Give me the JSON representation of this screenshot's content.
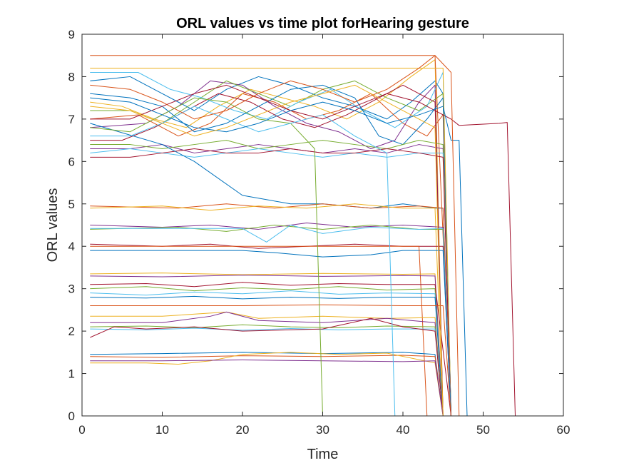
{
  "chart_data": {
    "type": "line",
    "title": "ORL values vs time plot forHearing gesture",
    "xlabel": "Time",
    "ylabel": "ORL values",
    "xlim": [
      0,
      60
    ],
    "ylim": [
      0,
      9
    ],
    "xticks": [
      0,
      10,
      20,
      30,
      40,
      50,
      60
    ],
    "yticks": [
      0,
      1,
      2,
      3,
      4,
      5,
      6,
      7,
      8,
      9
    ],
    "xtick_labels": [
      "0",
      "10",
      "20",
      "30",
      "40",
      "50",
      "60"
    ],
    "ytick_labels": [
      "0",
      "1",
      "2",
      "3",
      "4",
      "5",
      "6",
      "7",
      "8",
      "9"
    ],
    "grid": false,
    "legend": "none",
    "colors": [
      "#0072BD",
      "#D95319",
      "#EDB120",
      "#7E2F8E",
      "#77AC30",
      "#4DBEEE",
      "#A2142F"
    ],
    "series": [
      {
        "x": [
          1,
          6,
          10,
          14,
          18,
          22,
          26,
          30,
          34,
          38,
          41,
          44,
          45,
          46,
          55
        ],
        "values": [
          7.9,
          8.0,
          7.6,
          7.2,
          7.7,
          8.0,
          7.8,
          7.5,
          7.3,
          7.0,
          7.4,
          7.9,
          7.6,
          0,
          0
        ]
      },
      {
        "x": [
          1,
          7,
          12,
          16,
          20,
          24,
          28,
          32,
          36,
          40,
          43,
          45,
          46,
          55
        ],
        "values": [
          7.0,
          7.1,
          6.6,
          6.9,
          7.6,
          7.4,
          7.0,
          7.2,
          7.6,
          6.9,
          6.6,
          7.1,
          0,
          0
        ]
      },
      {
        "x": [
          1,
          5,
          9,
          13,
          17,
          21,
          25,
          29,
          33,
          37,
          41,
          44,
          45,
          55
        ],
        "values": [
          7.4,
          7.3,
          7.0,
          6.8,
          7.3,
          7.7,
          7.5,
          7.3,
          7.0,
          7.4,
          8.0,
          8.4,
          0,
          0
        ]
      },
      {
        "x": [
          1,
          8,
          12,
          16,
          20,
          24,
          28,
          32,
          36,
          39,
          42,
          44,
          45,
          55
        ],
        "values": [
          6.8,
          6.9,
          7.3,
          7.9,
          7.8,
          7.3,
          6.9,
          6.7,
          6.3,
          6.5,
          7.4,
          7.8,
          0,
          0
        ]
      },
      {
        "x": [
          1,
          6,
          10,
          14,
          18,
          22,
          26,
          30,
          34,
          38,
          42,
          45,
          46,
          55
        ],
        "values": [
          7.2,
          7.2,
          6.9,
          7.4,
          7.9,
          7.6,
          7.3,
          7.7,
          7.9,
          7.5,
          7.2,
          7.6,
          0,
          0
        ]
      },
      {
        "x": [
          1,
          7,
          11,
          15,
          19,
          23,
          27,
          31,
          35,
          39,
          43,
          45,
          46,
          55
        ],
        "values": [
          8.1,
          8.1,
          7.7,
          7.5,
          7.2,
          7.0,
          7.4,
          7.7,
          7.2,
          6.8,
          7.3,
          8.1,
          0,
          0
        ]
      },
      {
        "x": [
          1,
          5,
          9,
          13,
          17,
          21,
          25,
          29,
          33,
          37,
          40,
          44,
          45,
          55
        ],
        "values": [
          6.5,
          6.5,
          6.8,
          7.2,
          7.6,
          7.4,
          7.0,
          6.8,
          7.1,
          7.5,
          7.8,
          7.4,
          0,
          0
        ]
      },
      {
        "x": [
          1,
          6,
          10,
          14,
          18,
          22,
          26,
          30,
          34,
          37,
          40,
          43,
          45,
          46,
          55
        ],
        "values": [
          7.6,
          7.5,
          7.3,
          6.7,
          6.9,
          7.3,
          7.7,
          7.8,
          7.5,
          6.6,
          6.4,
          7.0,
          7.5,
          0,
          0
        ]
      },
      {
        "x": [
          1,
          44,
          46,
          55
        ],
        "values": [
          8.5,
          8.5,
          0,
          0
        ]
      },
      {
        "x": [
          1,
          45,
          46,
          55
        ],
        "values": [
          8.2,
          8.2,
          0,
          0
        ]
      },
      {
        "x": [
          1,
          6,
          10,
          14,
          18,
          22,
          26,
          30,
          34,
          38,
          42,
          45,
          46,
          55
        ],
        "values": [
          6.3,
          6.3,
          6.4,
          6.2,
          6.3,
          6.4,
          6.3,
          6.2,
          6.3,
          6.2,
          6.4,
          6.3,
          0,
          0
        ]
      },
      {
        "x": [
          1,
          6,
          10,
          14,
          18,
          22,
          26,
          30,
          34,
          38,
          42,
          45,
          46,
          55
        ],
        "values": [
          6.4,
          6.4,
          6.3,
          6.4,
          6.5,
          6.3,
          6.4,
          6.5,
          6.4,
          6.3,
          6.5,
          6.4,
          0,
          0
        ]
      },
      {
        "x": [
          1,
          6,
          10,
          14,
          18,
          22,
          26,
          30,
          34,
          38,
          42,
          45,
          46,
          55
        ],
        "values": [
          6.2,
          6.3,
          6.2,
          6.1,
          6.2,
          6.3,
          6.2,
          6.1,
          6.2,
          6.1,
          6.2,
          6.2,
          0,
          0
        ]
      },
      {
        "x": [
          1,
          6,
          10,
          14,
          18,
          22,
          26,
          30,
          34,
          38,
          42,
          45,
          46,
          55
        ],
        "values": [
          6.1,
          6.1,
          6.2,
          6.3,
          6.2,
          6.2,
          6.3,
          6.2,
          6.2,
          6.3,
          6.2,
          6.1,
          0,
          0
        ]
      },
      {
        "x": [
          1,
          10,
          14,
          20,
          26,
          30,
          36,
          40,
          44,
          45,
          46,
          55
        ],
        "values": [
          6.9,
          6.4,
          6.0,
          5.2,
          5.0,
          5.0,
          4.9,
          5.0,
          4.9,
          4.9,
          0,
          0
        ]
      },
      {
        "x": [
          1,
          12,
          18,
          24,
          30,
          36,
          42,
          45,
          46,
          55
        ],
        "values": [
          4.95,
          4.9,
          5.0,
          4.9,
          5.0,
          4.9,
          4.95,
          4.9,
          0,
          0
        ]
      },
      {
        "x": [
          1,
          10,
          16,
          22,
          28,
          34,
          40,
          44,
          45,
          55
        ],
        "values": [
          4.9,
          4.95,
          4.85,
          4.95,
          4.9,
          5.0,
          4.9,
          4.9,
          0,
          0
        ]
      },
      {
        "x": [
          1,
          10,
          16,
          22,
          28,
          34,
          40,
          45,
          46,
          55
        ],
        "values": [
          4.5,
          4.45,
          4.5,
          4.4,
          4.55,
          4.45,
          4.5,
          4.45,
          0,
          0
        ]
      },
      {
        "x": [
          1,
          12,
          18,
          24,
          30,
          36,
          42,
          45,
          46,
          55
        ],
        "values": [
          4.4,
          4.45,
          4.35,
          4.5,
          4.4,
          4.5,
          4.4,
          4.4,
          0,
          0
        ]
      },
      {
        "x": [
          1,
          20,
          23,
          26,
          30,
          36,
          42,
          45,
          46,
          55
        ],
        "values": [
          4.42,
          4.42,
          4.1,
          4.5,
          4.3,
          4.45,
          4.4,
          4.42,
          0,
          0
        ]
      },
      {
        "x": [
          1,
          10,
          16,
          22,
          28,
          34,
          40,
          45,
          46,
          55
        ],
        "values": [
          4.05,
          4.0,
          4.05,
          3.95,
          4.0,
          4.05,
          4.0,
          4.0,
          0,
          0
        ]
      },
      {
        "x": [
          1,
          20,
          24,
          30,
          36,
          40,
          45,
          46,
          55
        ],
        "values": [
          3.9,
          3.9,
          3.85,
          3.75,
          3.8,
          3.9,
          3.9,
          0,
          0
        ]
      },
      {
        "x": [
          1,
          42,
          43,
          55
        ],
        "values": [
          4.0,
          4.0,
          0,
          0
        ]
      },
      {
        "x": [
          1,
          10,
          20,
          30,
          40,
          44,
          45,
          55
        ],
        "values": [
          3.35,
          3.37,
          3.33,
          3.36,
          3.34,
          3.35,
          0,
          0
        ]
      },
      {
        "x": [
          1,
          10,
          20,
          30,
          40,
          44,
          45,
          55
        ],
        "values": [
          3.3,
          3.28,
          3.32,
          3.29,
          3.31,
          3.3,
          0,
          0
        ]
      },
      {
        "x": [
          1,
          8,
          14,
          20,
          26,
          32,
          38,
          44,
          45,
          55
        ],
        "values": [
          3.0,
          3.05,
          2.95,
          3.02,
          2.98,
          3.05,
          2.97,
          3.0,
          0,
          0
        ]
      },
      {
        "x": [
          1,
          8,
          14,
          20,
          26,
          32,
          38,
          44,
          45,
          55
        ],
        "values": [
          2.9,
          2.85,
          2.92,
          2.88,
          2.95,
          2.87,
          2.9,
          2.88,
          0,
          0
        ]
      },
      {
        "x": [
          1,
          8,
          14,
          20,
          26,
          32,
          38,
          44,
          46,
          55
        ],
        "values": [
          3.1,
          3.12,
          3.05,
          3.15,
          3.08,
          3.12,
          3.1,
          3.1,
          0,
          0
        ]
      },
      {
        "x": [
          1,
          8,
          14,
          20,
          26,
          32,
          38,
          44,
          45,
          55
        ],
        "values": [
          2.8,
          2.78,
          2.82,
          2.76,
          2.8,
          2.77,
          2.8,
          2.8,
          0,
          0
        ]
      },
      {
        "x": [
          1,
          20,
          30,
          40,
          45,
          46,
          55
        ],
        "values": [
          2.6,
          2.6,
          2.62,
          2.6,
          2.6,
          0,
          0
        ]
      },
      {
        "x": [
          1,
          10,
          18,
          22,
          30,
          38,
          44,
          45,
          55
        ],
        "values": [
          2.35,
          2.35,
          2.45,
          2.3,
          2.35,
          2.3,
          2.32,
          0,
          0
        ]
      },
      {
        "x": [
          1,
          10,
          16,
          18,
          22,
          30,
          38,
          44,
          45,
          55
        ],
        "values": [
          2.2,
          2.2,
          2.35,
          2.45,
          2.25,
          2.2,
          2.3,
          2.2,
          0,
          0
        ]
      },
      {
        "x": [
          1,
          8,
          14,
          20,
          26,
          32,
          38,
          44,
          45,
          55
        ],
        "values": [
          2.1,
          2.12,
          2.08,
          2.15,
          2.1,
          2.08,
          2.12,
          2.1,
          0,
          0
        ]
      },
      {
        "x": [
          1,
          8,
          14,
          20,
          26,
          32,
          38,
          44,
          45,
          55
        ],
        "values": [
          2.05,
          2.03,
          2.07,
          2.02,
          2.06,
          2.03,
          2.05,
          2.05,
          0,
          0
        ]
      },
      {
        "x": [
          1,
          4,
          8,
          14,
          20,
          30,
          36,
          40,
          44,
          45,
          55
        ],
        "values": [
          1.85,
          2.1,
          2.05,
          2.1,
          2.0,
          2.05,
          2.3,
          2.1,
          2.0,
          0,
          0
        ]
      },
      {
        "x": [
          1,
          10,
          20,
          30,
          40,
          44,
          45,
          55
        ],
        "values": [
          1.45,
          1.47,
          1.5,
          1.47,
          1.5,
          1.45,
          0,
          0
        ]
      },
      {
        "x": [
          1,
          10,
          20,
          30,
          40,
          44,
          45,
          55
        ],
        "values": [
          1.4,
          1.38,
          1.42,
          1.4,
          1.43,
          1.4,
          0,
          0
        ]
      },
      {
        "x": [
          1,
          8,
          12,
          16,
          20,
          26,
          32,
          38,
          44,
          45,
          55
        ],
        "values": [
          1.25,
          1.25,
          1.22,
          1.3,
          1.45,
          1.5,
          1.45,
          1.48,
          1.25,
          0,
          0
        ]
      },
      {
        "x": [
          1,
          10,
          20,
          30,
          40,
          44,
          45,
          55
        ],
        "values": [
          1.3,
          1.3,
          1.32,
          1.3,
          1.28,
          1.3,
          0,
          0
        ]
      },
      {
        "x": [
          1,
          6,
          10,
          14,
          18,
          22,
          26,
          29,
          30,
          55
        ],
        "values": [
          6.8,
          6.7,
          7.1,
          7.5,
          7.4,
          7.0,
          6.9,
          6.3,
          0,
          0
        ]
      },
      {
        "x": [
          1,
          6,
          10,
          14,
          18,
          22,
          26,
          30,
          34,
          38,
          39,
          55
        ],
        "values": [
          6.6,
          6.6,
          6.9,
          7.3,
          7.0,
          6.7,
          6.9,
          7.1,
          6.6,
          6.2,
          0,
          0
        ]
      },
      {
        "x": [
          1,
          6,
          10,
          14,
          18,
          22,
          26,
          30,
          34,
          38,
          42,
          45,
          46,
          47,
          52,
          53,
          54,
          55
        ],
        "values": [
          7.0,
          7.0,
          7.3,
          7.6,
          7.8,
          7.5,
          7.2,
          7.0,
          7.3,
          7.6,
          7.4,
          7.1,
          7.0,
          6.85,
          6.9,
          6.92,
          0,
          0
        ]
      },
      {
        "x": [
          1,
          6,
          10,
          14,
          18,
          22,
          26,
          30,
          34,
          38,
          42,
          45,
          46,
          47,
          48,
          55
        ],
        "values": [
          7.5,
          7.4,
          7.1,
          6.8,
          6.7,
          6.9,
          7.2,
          7.4,
          7.2,
          6.9,
          7.1,
          7.3,
          6.5,
          6.5,
          0,
          0
        ]
      },
      {
        "x": [
          1,
          6,
          10,
          14,
          18,
          22,
          26,
          30,
          34,
          38,
          42,
          44,
          46,
          47,
          55
        ],
        "values": [
          7.8,
          7.7,
          7.4,
          7.0,
          7.2,
          7.6,
          7.9,
          7.7,
          7.4,
          7.7,
          8.2,
          8.5,
          8.1,
          0,
          0
        ]
      },
      {
        "x": [
          1,
          6,
          10,
          14,
          18,
          22,
          26,
          30,
          34,
          38,
          42,
          44,
          45,
          55
        ],
        "values": [
          7.3,
          7.2,
          6.9,
          6.6,
          6.8,
          7.1,
          7.4,
          7.6,
          7.8,
          7.4,
          7.0,
          6.8,
          0,
          0
        ]
      }
    ]
  }
}
